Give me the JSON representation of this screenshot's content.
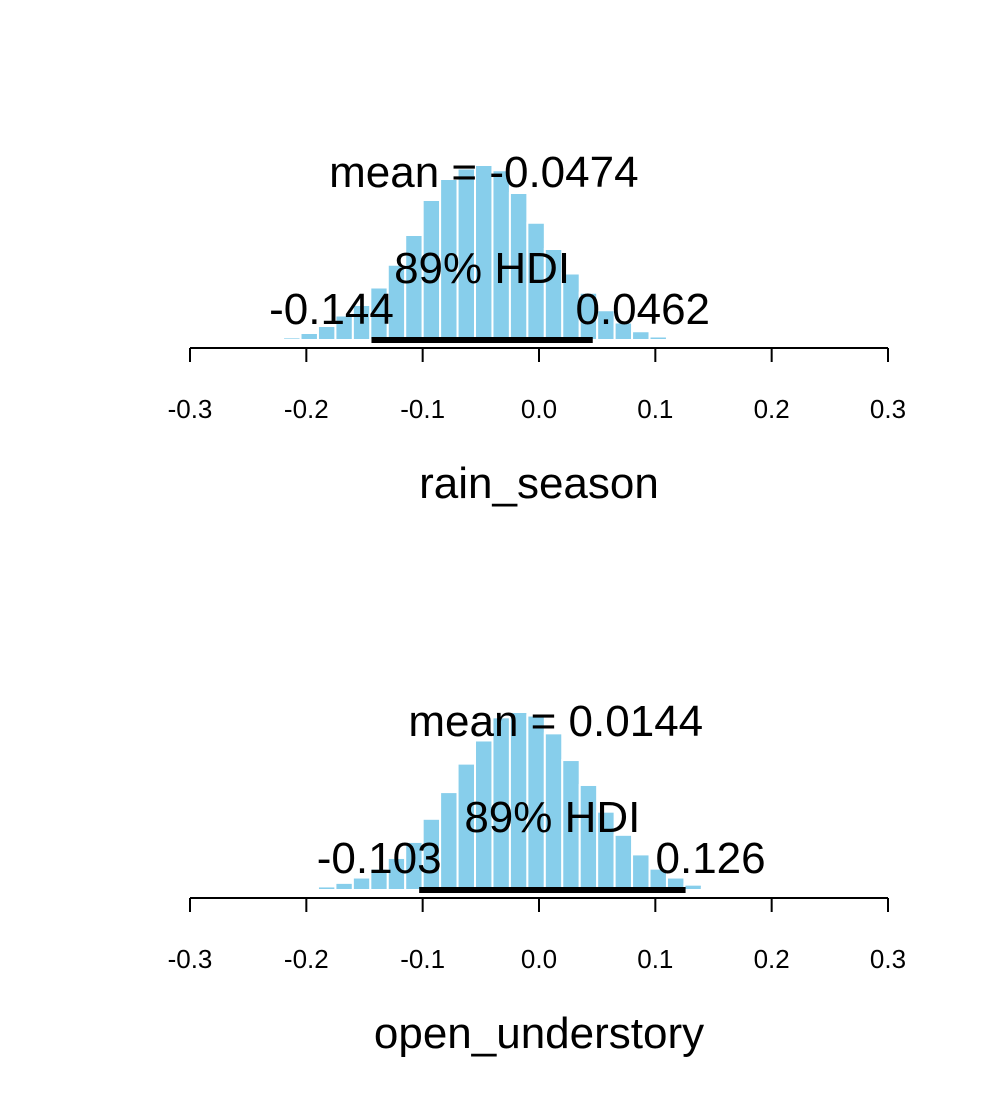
{
  "chart_data": [
    {
      "type": "bar",
      "xlabel": "rain_season",
      "mean_label": "mean = -0.0474",
      "hdi_label": "89% HDI",
      "hdi_low_label": "-0.144",
      "hdi_high_label": "0.0462",
      "hdi": [
        -0.144,
        0.0462
      ],
      "xlim": [
        -0.3,
        0.3
      ],
      "xticks": [
        -0.3,
        -0.2,
        -0.1,
        0.0,
        0.1,
        0.2,
        0.3
      ],
      "xtick_labels": [
        "-0.3",
        "-0.2",
        "-0.1",
        "0.0",
        "0.1",
        "0.2",
        "0.3"
      ],
      "bins": {
        "start": -0.235,
        "width": 0.015,
        "heights": [
          0.005,
          0.015,
          0.04,
          0.08,
          0.14,
          0.2,
          0.3,
          0.43,
          0.6,
          0.8,
          0.92,
          0.98,
          1.0,
          0.97,
          0.84,
          0.67,
          0.52,
          0.38,
          0.27,
          0.17,
          0.1,
          0.05,
          0.02,
          0.008,
          0.003
        ]
      },
      "bar_color": "#87CEEB"
    },
    {
      "type": "bar",
      "xlabel": "open_understory",
      "mean_label": "mean = 0.0144",
      "hdi_label": "89% HDI",
      "hdi_low_label": "-0.103",
      "hdi_high_label": "0.126",
      "hdi": [
        -0.103,
        0.126
      ],
      "xlim": [
        -0.3,
        0.3
      ],
      "xticks": [
        -0.3,
        -0.2,
        -0.1,
        0.0,
        0.1,
        0.2,
        0.3
      ],
      "xtick_labels": [
        "-0.3",
        "-0.2",
        "-0.1",
        "0.0",
        "0.1",
        "0.2",
        "0.3"
      ],
      "bins": {
        "start": -0.205,
        "width": 0.015,
        "heights": [
          0.005,
          0.02,
          0.04,
          0.07,
          0.12,
          0.18,
          0.27,
          0.4,
          0.55,
          0.71,
          0.84,
          0.97,
          1.0,
          0.98,
          0.88,
          0.73,
          0.59,
          0.44,
          0.31,
          0.2,
          0.12,
          0.07,
          0.03,
          0.01,
          0.004
        ]
      },
      "bar_color": "#87CEEB"
    }
  ]
}
